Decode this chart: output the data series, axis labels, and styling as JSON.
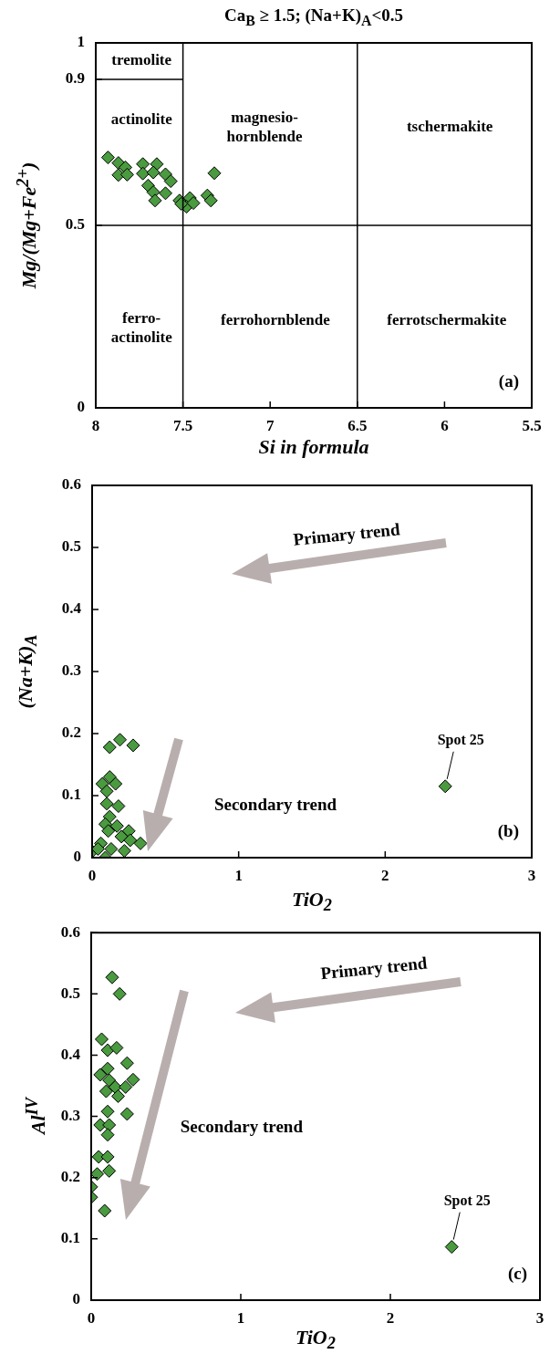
{
  "chart_data": [
    {
      "type": "scatter",
      "title": "Ca$_{B}$ ≥ 1.5; (Na+K)$_{A}$<0.5",
      "xlabel": "Si in formula",
      "ylabel": "Mg/(Mg+Fe$^{2+}$)",
      "xlim": [
        8,
        5.5
      ],
      "xticks": [
        8,
        7.5,
        7,
        6.5,
        6,
        5.5
      ],
      "ylim": [
        0,
        1
      ],
      "yticks": [
        0,
        0.5,
        0.9,
        1
      ],
      "marker": "diamond",
      "x": [
        7.93,
        7.87,
        7.83,
        7.87,
        7.82,
        7.73,
        7.65,
        7.73,
        7.67,
        7.6,
        7.57,
        7.7,
        7.67,
        7.6,
        7.66,
        7.52,
        7.46,
        7.48,
        7.44,
        7.36,
        7.34,
        7.32,
        7.51
      ],
      "series": [
        {
          "color": "#4a9a3f",
          "values": [
            0.686,
            0.671,
            0.659,
            0.638,
            0.639,
            0.668,
            0.668,
            0.642,
            0.645,
            0.64,
            0.621,
            0.609,
            0.591,
            0.588,
            0.568,
            0.568,
            0.575,
            0.551,
            0.561,
            0.582,
            0.568,
            0.643,
            0.559
          ]
        },
        {
          "type": "line",
          "x": [
            8,
            7.5
          ],
          "color": "#000000",
          "marker": "none",
          "values": [
            0.9,
            0.9
          ]
        }
      ],
      "ref_lines": [
        {
          "axis": "x",
          "value": 7.5,
          "color": "#000000"
        },
        {
          "axis": "x",
          "value": 6.5,
          "color": "#000000"
        },
        {
          "axis": "y",
          "value": 0.5,
          "color": "#000000"
        }
      ],
      "annotations": [
        "tremolite",
        "actinolite",
        "magnesio-\nhornblende",
        "tschermakite",
        "ferro-\nactinolite",
        "ferrohornblende",
        "ferrotschermakite",
        "(a)"
      ]
    },
    {
      "type": "scatter",
      "xlabel": "TiO$_{2}$",
      "ylabel": "(Na+K)$_{A}$",
      "xlim": [
        0,
        3
      ],
      "xticks": [
        0,
        1,
        2,
        3
      ],
      "ylim": [
        0,
        0.6
      ],
      "yticks": [
        0,
        0.1,
        0.2,
        0.3,
        0.4,
        0.5,
        0.6
      ],
      "marker": "diamond",
      "x": [
        0.12,
        0.19,
        0.28,
        0.07,
        0.12,
        0.16,
        0.1,
        0.1,
        0.18,
        0.12,
        0.09,
        0.17,
        0.11,
        0.25,
        0.2,
        0.26,
        0.33,
        0.06,
        0,
        0.04,
        0.13,
        0.22,
        0.09,
        2.41
      ],
      "series": [
        {
          "color": "#4a9a3f",
          "values": [
            0.178,
            0.19,
            0.181,
            0.119,
            0.13,
            0.119,
            0.107,
            0.087,
            0.083,
            0.066,
            0.054,
            0.051,
            0.043,
            0.043,
            0.034,
            0.028,
            0.023,
            0.023,
            0.01,
            0.014,
            0.014,
            0.011,
            0,
            0.115
          ]
        }
      ],
      "annotations": [
        "Primary trend",
        "Secondary trend",
        {
          "text": "Spot 25",
          "x": 2.41,
          "y": 0.115
        },
        "(b)"
      ]
    },
    {
      "type": "scatter",
      "xlabel": "TiO$_{2}$",
      "ylabel": "Al$^{IV}$",
      "xlim": [
        0,
        3
      ],
      "xticks": [
        0,
        1,
        2,
        3
      ],
      "ylim": [
        0,
        0.6
      ],
      "yticks": [
        0,
        0.1,
        0.2,
        0.3,
        0.4,
        0.5,
        0.6
      ],
      "marker": "diamond",
      "x": [
        0.14,
        0.19,
        0.07,
        0.11,
        0.17,
        0.24,
        0.11,
        0.06,
        0.12,
        0.1,
        0.16,
        0.18,
        0.23,
        0.28,
        0.11,
        0.24,
        0.06,
        0.12,
        0.11,
        0.05,
        0.11,
        0.12,
        0.04,
        0,
        0,
        0.09,
        2.41
      ],
      "series": [
        {
          "color": "#4a9a3f",
          "values": [
            0.527,
            0.5,
            0.426,
            0.408,
            0.412,
            0.387,
            0.378,
            0.368,
            0.359,
            0.341,
            0.348,
            0.333,
            0.348,
            0.36,
            0.308,
            0.304,
            0.286,
            0.286,
            0.27,
            0.234,
            0.234,
            0.211,
            0.206,
            0.185,
            0.168,
            0.146,
            0.087
          ]
        }
      ],
      "annotations": [
        "Primary trend",
        "Secondary trend",
        {
          "text": "Spot 25",
          "x": 2.41,
          "y": 0.087
        },
        "(c)"
      ]
    }
  ]
}
